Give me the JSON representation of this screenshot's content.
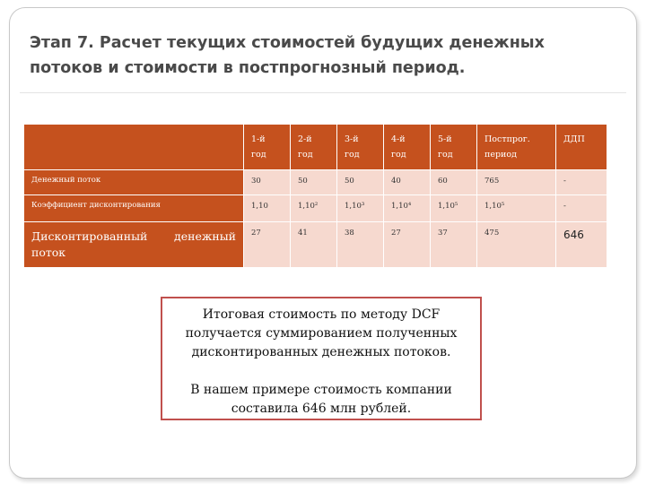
{
  "slide": {
    "title_line1": "Этап 7. Расчет текущих стоимостей будущих денежных",
    "title_line2": "потоков и стоимости в постпрогнозный период."
  },
  "table": {
    "headers": [
      [
        "",
        ""
      ],
      [
        "1-й",
        "год"
      ],
      [
        "2-й",
        "год"
      ],
      [
        "3-й",
        "год"
      ],
      [
        "4-й",
        "год"
      ],
      [
        "5-й",
        "год"
      ],
      [
        "Постпрог.",
        "период"
      ],
      [
        "ДДП",
        ""
      ]
    ],
    "rows": [
      {
        "label": "Денежный поток",
        "cells": [
          "30",
          "50",
          "50",
          "40",
          "60",
          "765",
          "-"
        ]
      },
      {
        "label": "Коэффициент дисконтирования",
        "cells": [
          "1,10",
          "1,10²",
          "1,10³",
          "1,10⁴",
          "1,10⁵",
          "1,10⁵",
          "-"
        ]
      },
      {
        "label": "Дисконтированный денежный поток",
        "cells": [
          "27",
          "41",
          "38",
          "27",
          "37",
          "475",
          "646"
        ]
      }
    ]
  },
  "summary": {
    "p1_line1": "Итоговая стоимость по методу DCF",
    "p1_line2": "получается суммированием полученных",
    "p1_line3": "дисконтированных денежных потоков.",
    "p2_line1": "В нашем примере стоимость компании",
    "p2_line2": "составила 646 млн рублей."
  },
  "colors": {
    "accent": "#c5511e",
    "cell_bg": "#f6d9cf",
    "box_border": "#c0504d"
  }
}
